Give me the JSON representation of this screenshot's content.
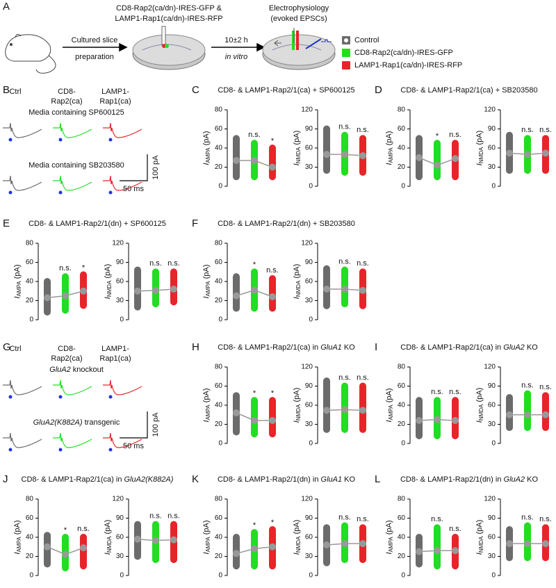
{
  "panel_A": {
    "letter": "A",
    "step1": [
      "Cultured slice",
      "preparation"
    ],
    "construct": [
      "CD8-Rap2(ca/dn)-IRES-GFP &",
      "LAMP1-Rap1(ca/dn)-IRES-RFP"
    ],
    "time": "10±2 h",
    "time_note": "in vitro",
    "recording": [
      "Electrophysiology",
      "(evoked EPSCs)"
    ]
  },
  "groups": [
    {
      "name": "Control",
      "color": "#6b6b6b"
    },
    {
      "name": "CD8-Rap2(ca/dn)-IRES-GFP",
      "color": "#22dd22"
    },
    {
      "name": "LAMP1-Rap1(ca/dn)-IRES-RFP",
      "color": "#e8242a"
    }
  ],
  "panel_B": {
    "letter": "B",
    "col_headers": [
      [
        "Ctrl"
      ],
      [
        "CD8-",
        "Rap2(ca)"
      ],
      [
        "LAMP1-",
        "Rap1(ca)"
      ]
    ],
    "conditions": [
      "Media containing SP600125",
      "Media containing SB203580"
    ],
    "scale_y": "100 pA",
    "scale_x": "50 ms"
  },
  "panel_G": {
    "letter": "G",
    "col_headers": [
      [
        "Ctrl"
      ],
      [
        "CD8-",
        "Rap2(ca)"
      ],
      [
        "LAMP1-",
        "Rap1(ca)"
      ]
    ],
    "conditions": [
      {
        "italic": "GluA2",
        "rest": " knockout"
      },
      {
        "italic": "GluA2(K882A)",
        "rest": " transgenic"
      }
    ],
    "scale_y": "100 pA",
    "scale_x": "50 ms"
  },
  "panels": [
    {
      "letter": "C",
      "title": "CD8- & LAMP1-Rap2/1(ca) + SP600125"
    },
    {
      "letter": "D",
      "title": "CD8- & LAMP1-Rap2/1(ca) + SB203580"
    },
    {
      "letter": "E",
      "title": "CD8- & LAMP1-Rap2/1(dn) + SP600125"
    },
    {
      "letter": "F",
      "title": "CD8- & LAMP1-Rap2/1(dn) + SB203580"
    },
    {
      "letter": "H",
      "title": "CD8- & LAMP1-Rap2/1(ca) in ",
      "title_italic": "GluA1",
      "title_end": " KO"
    },
    {
      "letter": "I",
      "title": "CD8- & LAMP1-Rap2/1(ca) in ",
      "title_italic": "GluA2",
      "title_end": " KO"
    },
    {
      "letter": "J",
      "title": "CD8- & LAMP1-Rap2/1(ca) in ",
      "title_italic": "GluA2(K882A)"
    },
    {
      "letter": "K",
      "title": "CD8- & LAMP1-Rap2/1(dn) in ",
      "title_italic": "GluA1",
      "title_end": " KO"
    },
    {
      "letter": "L",
      "title": "CD8- & LAMP1-Rap2/1(dn) in ",
      "title_italic": "GluA2",
      "title_end": " KO"
    }
  ],
  "chart_data": [
    {
      "type": "strip",
      "ylabel": "I",
      "ylabel_sub": "AMPA",
      "ylabel_unit": "(pA)",
      "ylim": [
        0,
        80
      ],
      "yticks": [
        0,
        20,
        40,
        60,
        80
      ],
      "means": [
        27,
        27,
        20
      ],
      "mins": [
        10,
        10,
        10
      ],
      "maxs": [
        50,
        45,
        40
      ],
      "sig": [
        null,
        "n.s.",
        "*"
      ]
    },
    {
      "type": "strip",
      "ylabel": "I",
      "ylabel_sub": "NMDA",
      "ylabel_unit": "(pA)",
      "ylim": [
        0,
        120
      ],
      "yticks": [
        0,
        30,
        60,
        90,
        120
      ],
      "means": [
        50,
        50,
        48
      ],
      "mins": [
        25,
        22,
        22
      ],
      "maxs": [
        90,
        80,
        75
      ],
      "sig": [
        null,
        "n.s.",
        "n.s."
      ]
    },
    {
      "type": "strip",
      "ylabel": "I",
      "ylabel_sub": "AMPA",
      "ylabel_unit": "(pA)",
      "ylim": [
        0,
        80
      ],
      "yticks": [
        0,
        20,
        40,
        60,
        80
      ],
      "means": [
        30,
        22,
        29
      ],
      "mins": [
        10,
        10,
        10
      ],
      "maxs": [
        50,
        45,
        45
      ],
      "sig": [
        null,
        "*",
        "n.s."
      ]
    },
    {
      "type": "strip",
      "ylabel": "I",
      "ylabel_sub": "NMDA",
      "ylabel_unit": "(pA)",
      "ylim": [
        0,
        120
      ],
      "yticks": [
        0,
        30,
        60,
        90,
        120
      ],
      "means": [
        52,
        50,
        52
      ],
      "mins": [
        25,
        25,
        25
      ],
      "maxs": [
        80,
        75,
        75
      ],
      "sig": [
        null,
        "n.s.",
        "n.s."
      ]
    },
    {
      "type": "strip",
      "ylabel": "I",
      "ylabel_sub": "AMPA",
      "ylabel_unit": "(pA)",
      "ylim": [
        0,
        80
      ],
      "yticks": [
        0,
        20,
        40,
        60,
        80
      ],
      "means": [
        23,
        25,
        30
      ],
      "mins": [
        8,
        10,
        15
      ],
      "maxs": [
        40,
        45,
        47
      ],
      "sig": [
        null,
        "n.s.",
        "*"
      ]
    },
    {
      "type": "strip",
      "ylabel": "I",
      "ylabel_sub": "NMDA",
      "ylabel_unit": "(pA)",
      "ylim": [
        0,
        120
      ],
      "yticks": [
        0,
        30,
        60,
        90,
        120
      ],
      "means": [
        45,
        46,
        48
      ],
      "mins": [
        20,
        25,
        28
      ],
      "maxs": [
        78,
        75,
        75
      ],
      "sig": [
        null,
        "n.s.",
        "n.s."
      ]
    },
    {
      "type": "strip",
      "ylabel": "I",
      "ylabel_sub": "AMPA",
      "ylabel_unit": "(pA)",
      "ylim": [
        0,
        80
      ],
      "yticks": [
        0,
        20,
        40,
        60,
        80
      ],
      "means": [
        25,
        31,
        24
      ],
      "mins": [
        12,
        12,
        12
      ],
      "maxs": [
        45,
        50,
        43
      ],
      "sig": [
        null,
        "*",
        "n.s."
      ]
    },
    {
      "type": "strip",
      "ylabel": "I",
      "ylabel_sub": "NMDA",
      "ylabel_unit": "(pA)",
      "ylim": [
        0,
        120
      ],
      "yticks": [
        0,
        30,
        60,
        90,
        120
      ],
      "means": [
        48,
        48,
        46
      ],
      "mins": [
        22,
        25,
        22
      ],
      "maxs": [
        80,
        78,
        75
      ],
      "sig": [
        null,
        "n.s.",
        "n.s."
      ]
    },
    {
      "type": "strip",
      "ylabel": "I",
      "ylabel_sub": "AMPA",
      "ylabel_unit": "(pA)",
      "ylim": [
        0,
        80
      ],
      "yticks": [
        0,
        20,
        40,
        60,
        80
      ],
      "means": [
        32,
        24,
        24
      ],
      "mins": [
        12,
        10,
        10
      ],
      "maxs": [
        50,
        45,
        45
      ],
      "sig": [
        null,
        "*",
        "*"
      ]
    },
    {
      "type": "strip",
      "ylabel": "I",
      "ylabel_sub": "NMDA",
      "ylabel_unit": "(pA)",
      "ylim": [
        0,
        120
      ],
      "yticks": [
        0,
        30,
        60,
        90,
        120
      ],
      "means": [
        52,
        53,
        52
      ],
      "mins": [
        22,
        22,
        22
      ],
      "maxs": [
        98,
        90,
        90
      ],
      "sig": [
        null,
        "n.s.",
        "n.s."
      ]
    },
    {
      "type": "strip",
      "ylabel": "I",
      "ylabel_sub": "AMPA",
      "ylabel_unit": "(pA)",
      "ylim": [
        0,
        80
      ],
      "yticks": [
        0,
        20,
        40,
        60,
        80
      ],
      "means": [
        24,
        25,
        24
      ],
      "mins": [
        8,
        8,
        8
      ],
      "maxs": [
        45,
        45,
        45
      ],
      "sig": [
        null,
        "n.s.",
        "n.s."
      ]
    },
    {
      "type": "strip",
      "ylabel": "I",
      "ylabel_sub": "NMDA",
      "ylabel_unit": "(pA)",
      "ylim": [
        0,
        120
      ],
      "yticks": [
        0,
        30,
        60,
        90,
        120
      ],
      "means": [
        45,
        45,
        45
      ],
      "mins": [
        25,
        25,
        25
      ],
      "maxs": [
        72,
        78,
        75
      ],
      "sig": [
        null,
        "n.s.",
        "n.s."
      ]
    },
    {
      "type": "strip",
      "ylabel": "I",
      "ylabel_sub": "AMPA",
      "ylabel_unit": "(pA)",
      "ylim": [
        0,
        80
      ],
      "yticks": [
        0,
        20,
        40,
        60,
        80
      ],
      "means": [
        30,
        22,
        29
      ],
      "mins": [
        12,
        8,
        10
      ],
      "maxs": [
        42,
        40,
        40
      ],
      "sig": [
        null,
        "*",
        "n.s."
      ]
    },
    {
      "type": "strip",
      "ylabel": "I",
      "ylabel_sub": "NMDA",
      "ylabel_unit": "(pA)",
      "ylim": [
        0,
        120
      ],
      "yticks": [
        0,
        30,
        60,
        90,
        120
      ],
      "means": [
        57,
        55,
        56
      ],
      "mins": [
        30,
        25,
        25
      ],
      "maxs": [
        80,
        80,
        80
      ],
      "sig": [
        null,
        "n.s.",
        "n.s."
      ]
    },
    {
      "type": "strip",
      "ylabel": "I",
      "ylabel_sub": "AMPA",
      "ylabel_unit": "(pA)",
      "ylim": [
        0,
        80
      ],
      "yticks": [
        0,
        20,
        40,
        60,
        80
      ],
      "means": [
        23,
        28,
        30
      ],
      "mins": [
        10,
        10,
        10
      ],
      "maxs": [
        40,
        45,
        48
      ],
      "sig": [
        null,
        "*",
        "*"
      ]
    },
    {
      "type": "strip",
      "ylabel": "I",
      "ylabel_sub": "NMDA",
      "ylabel_unit": "(pA)",
      "ylim": [
        0,
        120
      ],
      "yticks": [
        0,
        30,
        60,
        90,
        120
      ],
      "means": [
        48,
        50,
        50
      ],
      "mins": [
        20,
        25,
        25
      ],
      "maxs": [
        75,
        78,
        75
      ],
      "sig": [
        null,
        "n.s.",
        "n.s."
      ]
    },
    {
      "type": "strip",
      "ylabel": "I",
      "ylabel_sub": "AMPA",
      "ylabel_unit": "(pA)",
      "ylim": [
        0,
        80
      ],
      "yticks": [
        0,
        20,
        40,
        60,
        80
      ],
      "means": [
        25,
        26,
        26
      ],
      "mins": [
        12,
        10,
        10
      ],
      "maxs": [
        40,
        50,
        40
      ],
      "sig": [
        null,
        "n.s.",
        "n.s."
      ]
    },
    {
      "type": "strip",
      "ylabel": "I",
      "ylabel_sub": "NMDA",
      "ylabel_unit": "(pA)",
      "ylim": [
        0,
        120
      ],
      "yticks": [
        0,
        30,
        60,
        90,
        120
      ],
      "means": [
        50,
        50,
        50
      ],
      "mins": [
        28,
        28,
        28
      ],
      "maxs": [
        72,
        78,
        75
      ],
      "sig": [
        null,
        "n.s.",
        "n.s."
      ]
    }
  ]
}
